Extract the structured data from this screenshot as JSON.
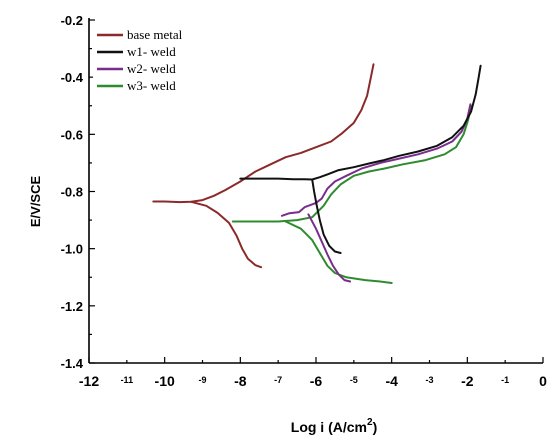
{
  "chart_data": {
    "type": "line",
    "xlabel": "Log i (A/cm",
    "xlabel_sup": "2",
    "xlabel_close": ")",
    "ylabel": "E/V/SCE",
    "xlim": [
      -12,
      0
    ],
    "ylim": [
      -1.4,
      -0.2
    ],
    "x_ticks_major": [
      {
        "value": -12,
        "label": "-12"
      },
      {
        "value": -10,
        "label": "-10"
      },
      {
        "value": -8,
        "label": "-8"
      },
      {
        "value": -6,
        "label": "-6"
      },
      {
        "value": -4,
        "label": "-4"
      },
      {
        "value": -2,
        "label": "-2"
      },
      {
        "value": 0,
        "label": "0"
      }
    ],
    "x_ticks_minor": [
      {
        "value": -11,
        "label": "-11"
      },
      {
        "value": -9,
        "label": "-9"
      },
      {
        "value": -7,
        "label": "-7"
      },
      {
        "value": -5,
        "label": "-5"
      },
      {
        "value": -3,
        "label": "-3"
      },
      {
        "value": -1,
        "label": "-1"
      }
    ],
    "y_ticks": [
      {
        "value": -0.2,
        "label": "-0.2"
      },
      {
        "value": -0.4,
        "label": "-0.4"
      },
      {
        "value": -0.6,
        "label": "-0.6"
      },
      {
        "value": -0.8,
        "label": "-0.8"
      },
      {
        "value": -1.0,
        "label": "-1.0"
      },
      {
        "value": -1.2,
        "label": "-1.2"
      },
      {
        "value": -1.4,
        "label": "-1.4"
      }
    ],
    "legend_position": "top-left",
    "series": [
      {
        "name": "base metal",
        "color": "#8b2a2a",
        "points": [
          [
            -10.3,
            -0.835
          ],
          [
            -10.0,
            -0.835
          ],
          [
            -9.6,
            -0.837
          ],
          [
            -9.3,
            -0.836
          ],
          [
            -9.0,
            -0.83
          ],
          [
            -8.7,
            -0.815
          ],
          [
            -8.4,
            -0.795
          ],
          [
            -8.0,
            -0.765
          ],
          [
            -7.6,
            -0.73
          ],
          [
            -7.2,
            -0.705
          ],
          [
            -6.8,
            -0.68
          ],
          [
            -6.4,
            -0.665
          ],
          [
            -6.0,
            -0.645
          ],
          [
            -5.6,
            -0.625
          ],
          [
            -5.3,
            -0.595
          ],
          [
            -5.0,
            -0.56
          ],
          [
            -4.8,
            -0.515
          ],
          [
            -4.65,
            -0.465
          ],
          [
            -4.55,
            -0.4
          ],
          [
            -4.48,
            -0.355
          ]
        ]
      },
      {
        "name": "base metal-cathodic",
        "color": "#8b2a2a",
        "points": [
          [
            -9.3,
            -0.836
          ],
          [
            -8.9,
            -0.85
          ],
          [
            -8.6,
            -0.875
          ],
          [
            -8.3,
            -0.91
          ],
          [
            -8.1,
            -0.955
          ],
          [
            -7.95,
            -1.0
          ],
          [
            -7.8,
            -1.035
          ],
          [
            -7.6,
            -1.058
          ],
          [
            -7.45,
            -1.065
          ]
        ]
      },
      {
        "name": "w3- weld",
        "color": "#2e8b2e",
        "points": [
          [
            -8.2,
            -0.905
          ],
          [
            -7.6,
            -0.905
          ],
          [
            -7.0,
            -0.905
          ],
          [
            -6.5,
            -0.9
          ],
          [
            -6.1,
            -0.89
          ],
          [
            -5.8,
            -0.85
          ],
          [
            -5.6,
            -0.81
          ],
          [
            -5.35,
            -0.775
          ],
          [
            -5.0,
            -0.745
          ],
          [
            -4.6,
            -0.73
          ],
          [
            -4.2,
            -0.72
          ],
          [
            -3.7,
            -0.705
          ],
          [
            -3.1,
            -0.69
          ],
          [
            -2.6,
            -0.67
          ],
          [
            -2.3,
            -0.645
          ],
          [
            -2.1,
            -0.6
          ],
          [
            -1.98,
            -0.55
          ],
          [
            -1.9,
            -0.5
          ]
        ]
      },
      {
        "name": "w3- weld-cathodic",
        "color": "#2e8b2e",
        "points": [
          [
            -6.8,
            -0.905
          ],
          [
            -6.4,
            -0.93
          ],
          [
            -6.1,
            -0.97
          ],
          [
            -5.9,
            -1.015
          ],
          [
            -5.7,
            -1.06
          ],
          [
            -5.5,
            -1.085
          ],
          [
            -5.2,
            -1.1
          ],
          [
            -4.7,
            -1.11
          ],
          [
            -4.3,
            -1.115
          ],
          [
            -4.0,
            -1.12
          ]
        ]
      },
      {
        "name": "w2- weld",
        "color": "#7b2d8e",
        "points": [
          [
            -6.9,
            -0.885
          ],
          [
            -6.7,
            -0.876
          ],
          [
            -6.45,
            -0.872
          ],
          [
            -6.3,
            -0.855
          ],
          [
            -6.0,
            -0.84
          ],
          [
            -5.85,
            -0.825
          ],
          [
            -5.7,
            -0.79
          ],
          [
            -5.5,
            -0.765
          ],
          [
            -5.2,
            -0.745
          ],
          [
            -4.8,
            -0.72
          ],
          [
            -4.3,
            -0.7
          ],
          [
            -3.8,
            -0.685
          ],
          [
            -3.3,
            -0.67
          ],
          [
            -2.8,
            -0.65
          ],
          [
            -2.4,
            -0.625
          ],
          [
            -2.15,
            -0.59
          ],
          [
            -2.0,
            -0.545
          ],
          [
            -1.92,
            -0.495
          ]
        ]
      },
      {
        "name": "w2- weld-cathodic",
        "color": "#7b2d8e",
        "points": [
          [
            -6.2,
            -0.88
          ],
          [
            -6.0,
            -0.93
          ],
          [
            -5.85,
            -0.975
          ],
          [
            -5.7,
            -1.02
          ],
          [
            -5.55,
            -1.06
          ],
          [
            -5.4,
            -1.09
          ],
          [
            -5.25,
            -1.11
          ],
          [
            -5.1,
            -1.115
          ]
        ]
      },
      {
        "name": "w1- weld",
        "color": "#111111",
        "points": [
          [
            -8.0,
            -0.755
          ],
          [
            -7.5,
            -0.755
          ],
          [
            -7.0,
            -0.755
          ],
          [
            -6.6,
            -0.757
          ],
          [
            -6.3,
            -0.757
          ],
          [
            -6.1,
            -0.758
          ],
          [
            -5.9,
            -0.75
          ],
          [
            -5.7,
            -0.74
          ],
          [
            -5.4,
            -0.725
          ],
          [
            -5.0,
            -0.715
          ],
          [
            -4.6,
            -0.702
          ],
          [
            -4.2,
            -0.69
          ],
          [
            -3.8,
            -0.675
          ],
          [
            -3.3,
            -0.66
          ],
          [
            -2.8,
            -0.64
          ],
          [
            -2.4,
            -0.61
          ],
          [
            -2.1,
            -0.57
          ],
          [
            -1.9,
            -0.52
          ],
          [
            -1.78,
            -0.46
          ],
          [
            -1.7,
            -0.4
          ],
          [
            -1.65,
            -0.36
          ]
        ]
      },
      {
        "name": "w1- weld-cathodic",
        "color": "#111111",
        "points": [
          [
            -6.1,
            -0.758
          ],
          [
            -6.05,
            -0.8
          ],
          [
            -5.98,
            -0.85
          ],
          [
            -5.9,
            -0.9
          ],
          [
            -5.8,
            -0.95
          ],
          [
            -5.65,
            -0.99
          ],
          [
            -5.5,
            -1.01
          ],
          [
            -5.35,
            -1.015
          ]
        ]
      }
    ],
    "legend": [
      {
        "label": "base metal",
        "color": "#8b2a2a"
      },
      {
        "label": "w1- weld",
        "color": "#111111"
      },
      {
        "label": "w2- weld",
        "color": "#7b2d8e"
      },
      {
        "label": "w3- weld",
        "color": "#2e8b2e"
      }
    ]
  }
}
